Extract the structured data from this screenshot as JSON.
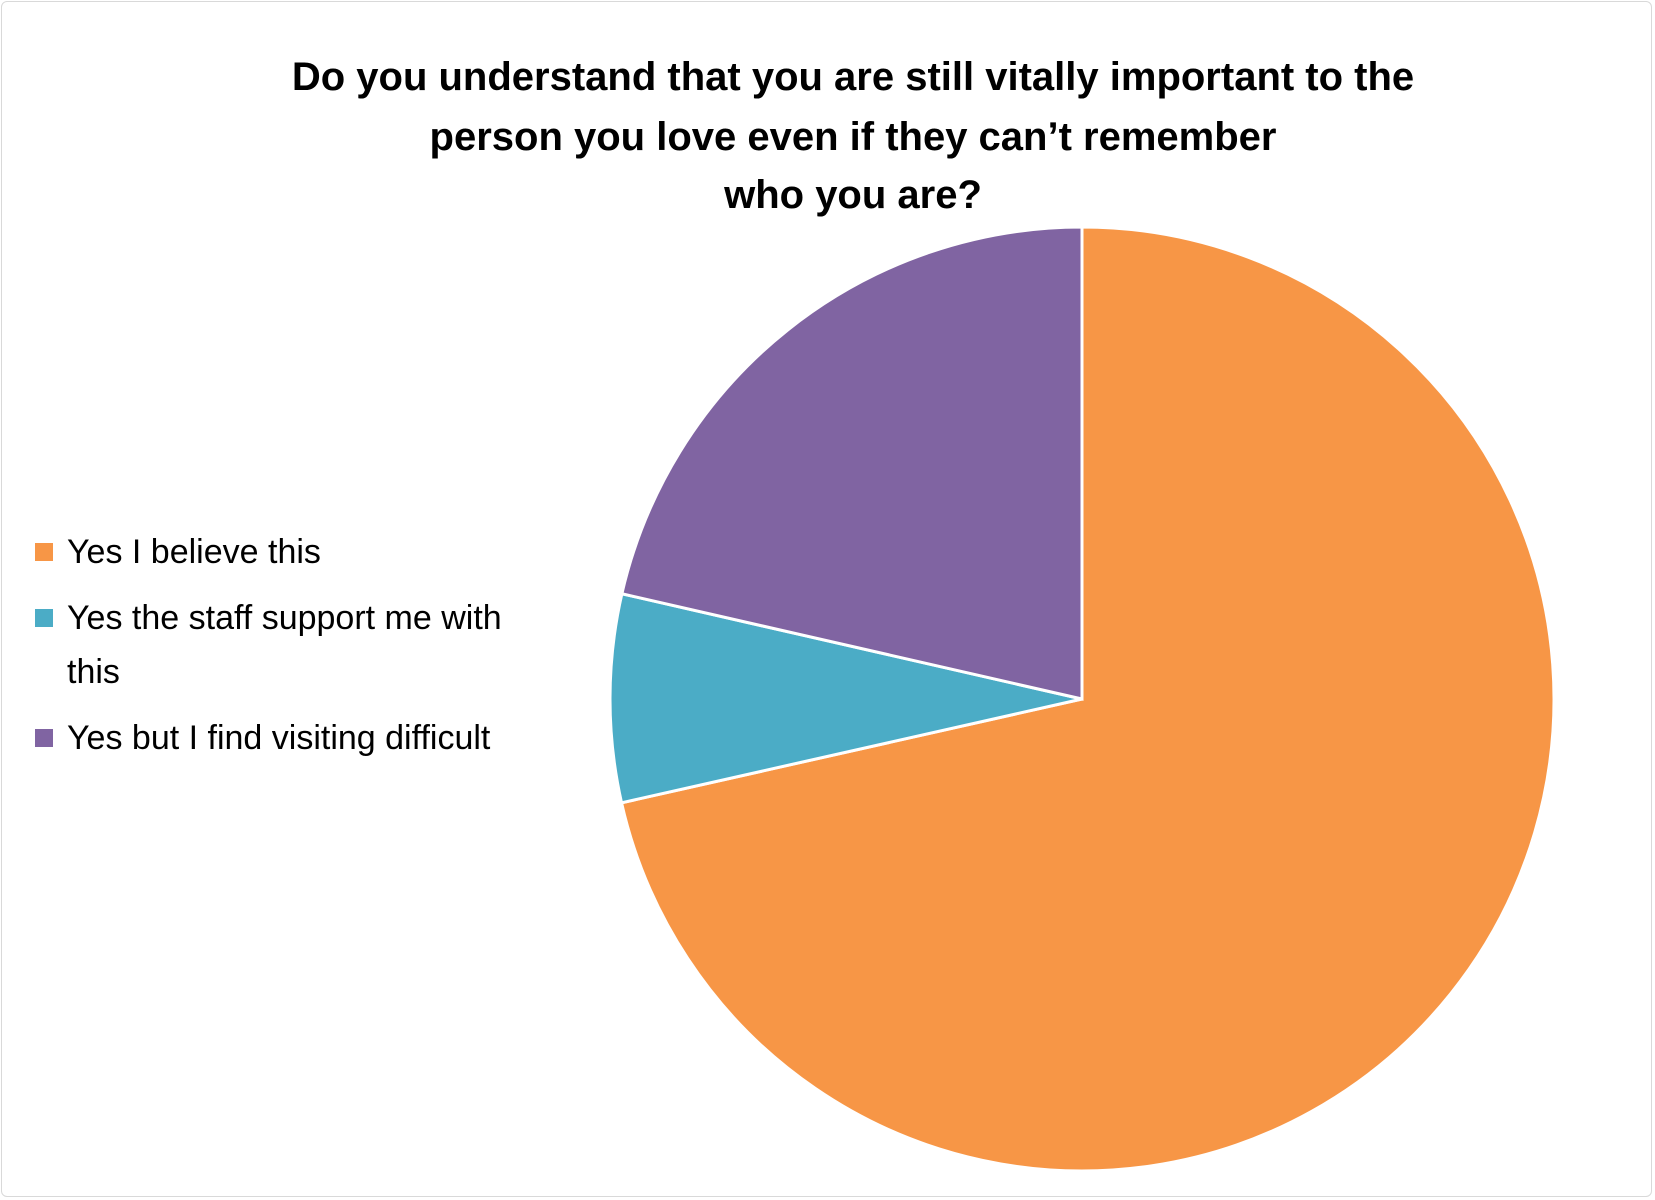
{
  "chart_data": {
    "type": "pie",
    "title": [
      "Do you understand that you are still vitally important to the",
      "person you love even if they can’t remember",
      "who you are?"
    ],
    "categories": [
      "Yes I believe this",
      "Yes the staff support me with this",
      "Yes but I find visiting difficult"
    ],
    "values": [
      71.4,
      7.1,
      21.4
    ],
    "colors": [
      "#f79646",
      "#4bacc6",
      "#8064a2"
    ],
    "legend": "left"
  }
}
